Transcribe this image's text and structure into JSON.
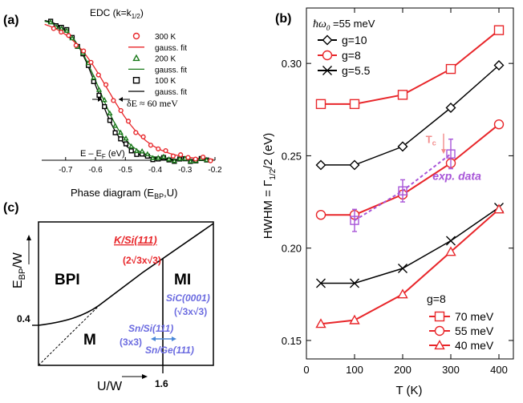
{
  "panel_a": {
    "label": "(a)",
    "title": "EDC (k=k",
    "title_sub": "1/2",
    "title_end": ")",
    "legend": [
      "300 K",
      "gauss. fit",
      "200 K",
      "gauss. fit",
      "100 K",
      "gauss. fit"
    ],
    "annotation": "δE ≈ 60 meV",
    "xlabel": "E – E",
    "xlabel_sub": "F",
    "xlabel_end": " (eV)",
    "xticks": [
      "-0.7",
      "-0.6",
      "-0.5",
      "-0.4",
      "-0.3",
      "-0.2"
    ],
    "colors": {
      "300K": "#e8262a",
      "200K": "#1b7a1b",
      "100K": "#000000"
    }
  },
  "panel_c": {
    "label": "(c)",
    "title": "Phase diagram (E",
    "title_sub": "BP",
    "title_end": ",U)",
    "ylabel": "E",
    "ylabel_sub": "BP",
    "ylabel_end": "/W",
    "xlabel": "U/W",
    "region_bpi": "BPI",
    "region_mi": "MI",
    "region_m": "M",
    "y_mark": "0.4",
    "x_mark": "1.6",
    "k_si": "K/Si(111)",
    "k_si_cell": "(2√3x√3)",
    "sic": "SiC(0001)",
    "sic_cell": "(√3x√3)",
    "sn_si": "Sn/Si(111)",
    "sn_cell": "(3x3)",
    "sn_ge": "Sn/Ge(111)",
    "colors": {
      "red": "#e8262a",
      "blue": "#6b6be0"
    }
  },
  "chart_data": [
    {
      "panel": "(b)",
      "type": "line",
      "header": "ħω",
      "header_sub": "0",
      "header_end": " =55 meV",
      "xlabel": "T (K)",
      "ylabel": "HWHM = Γ",
      "ylabel_sub": "1/2",
      "ylabel_end": "/2 (eV)",
      "xlim": [
        0,
        430
      ],
      "ylim": [
        0.14,
        0.33
      ],
      "xticks": [
        0,
        100,
        200,
        300,
        400
      ],
      "yticks": [
        0.15,
        0.2,
        0.25,
        0.3
      ],
      "ytick_labels": [
        "0.15",
        "0.20",
        "0.25",
        "0.30"
      ],
      "x": [
        30,
        100,
        200,
        300,
        400
      ],
      "series": [
        {
          "name": "g=10",
          "group": "black",
          "marker": "diamond",
          "color": "#000000",
          "values": [
            0.245,
            0.245,
            0.255,
            0.276,
            0.299
          ]
        },
        {
          "name": "g=8",
          "group": "black",
          "marker": "circle",
          "color": "#e8262a",
          "values": [
            0.218,
            0.218,
            0.229,
            0.246,
            0.267
          ]
        },
        {
          "name": "g=5.5",
          "group": "black",
          "marker": "x",
          "color": "#000000",
          "values": [
            0.181,
            0.181,
            0.189,
            0.204,
            0.222
          ]
        },
        {
          "name": "70 meV",
          "group": "red",
          "marker": "square",
          "color": "#e8262a",
          "values": [
            0.278,
            0.278,
            0.283,
            0.297,
            0.318
          ]
        },
        {
          "name": "40 meV",
          "group": "red",
          "marker": "triangle",
          "color": "#e8262a",
          "values": [
            0.159,
            0.161,
            0.175,
            0.198,
            0.221
          ]
        }
      ],
      "legend_red_title": "g=8",
      "legend_red": [
        {
          "name": "70 meV",
          "marker": "square"
        },
        {
          "name": "55 meV",
          "marker": "circle"
        },
        {
          "name": "40 meV",
          "marker": "triangle"
        }
      ],
      "exp_data": {
        "label": "exp. data",
        "color": "#a855d8",
        "x": [
          100,
          200,
          300
        ],
        "values": [
          0.215,
          0.231,
          0.251
        ],
        "errors": [
          0.006,
          0.006,
          0.008
        ]
      },
      "tc_label": "T",
      "tc_sub": "c",
      "tc_color": "#f28a8a"
    }
  ]
}
